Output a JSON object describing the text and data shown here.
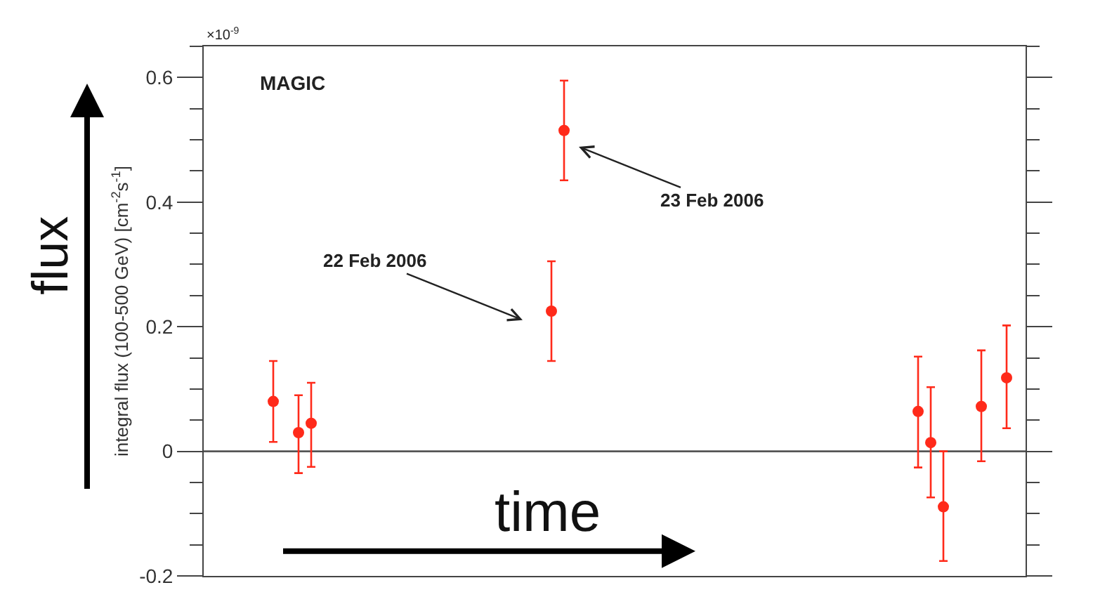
{
  "chart_data": {
    "type": "scatter",
    "ylabel": "integral flux (100-500 GeV) [cm$^{-2}$s$^{-1}$]",
    "categories": [
      null,
      null,
      null,
      null,
      null,
      null,
      null,
      null,
      null,
      null,
      null,
      null,
      null,
      null,
      null,
      null,
      null,
      null,
      null,
      null,
      null,
      null,
      null,
      null,
      null,
      null,
      null,
      null,
      null,
      null,
      null,
      null,
      null,
      null,
      null,
      null,
      null,
      null,
      null,
      null,
      null,
      null,
      null,
      null,
      null,
      null,
      null,
      null,
      null,
      null,
      null,
      null,
      null,
      null,
      null,
      null,
      null,
      null,
      null,
      null,
      null,
      null,
      null,
      null,
      null
    ],
    "series": [
      {
        "color": "#ff2a1a",
        "values": [
          null,
          null,
          null,
          null,
          null,
          0.08,
          null,
          0.03,
          0.045,
          null,
          null,
          null,
          null,
          null,
          null,
          null,
          null,
          null,
          null,
          null,
          null,
          null,
          null,
          null,
          null,
          null,
          null,
          0.225,
          0.515,
          null,
          null,
          null,
          null,
          null,
          null,
          null,
          null,
          null,
          null,
          null,
          null,
          null,
          null,
          null,
          null,
          null,
          null,
          null,
          null,
          null,
          null,
          null,
          null,
          null,
          null,
          null,
          0.064,
          0.014,
          -0.089,
          null,
          null,
          0.072,
          null,
          0.118,
          null
        ],
        "errors": [
          null,
          null,
          null,
          null,
          null,
          [
            0.015,
            0.145
          ],
          null,
          [
            -0.035,
            0.09
          ],
          [
            -0.025,
            0.11
          ],
          null,
          null,
          null,
          null,
          null,
          null,
          null,
          null,
          null,
          null,
          null,
          null,
          null,
          null,
          null,
          null,
          null,
          null,
          [
            0.145,
            0.305
          ],
          [
            0.435,
            0.595
          ],
          null,
          null,
          null,
          null,
          null,
          null,
          null,
          null,
          null,
          null,
          null,
          null,
          null,
          null,
          null,
          null,
          null,
          null,
          null,
          null,
          null,
          null,
          null,
          null,
          null,
          null,
          null,
          [
            -0.026,
            0.152
          ],
          [
            -0.074,
            0.103
          ],
          [
            -0.176,
            0.0
          ],
          null,
          null,
          [
            -0.016,
            0.162
          ],
          null,
          [
            0.037,
            0.202
          ],
          null
        ]
      }
    ],
    "ylim": [
      -0.2,
      0.65
    ],
    "yticks": [
      -0.2,
      0,
      0.2,
      0.4,
      0.6
    ],
    "ref_lines": [
      {
        "axis": "y",
        "value": 0,
        "color": "#555555"
      }
    ],
    "marker": "circle",
    "grid": false,
    "legend": false,
    "annotations": [
      "×10$^{-9}$",
      "MAGIC",
      "22 Feb 2006",
      "23 Feb 2006",
      "flux",
      "time"
    ]
  }
}
